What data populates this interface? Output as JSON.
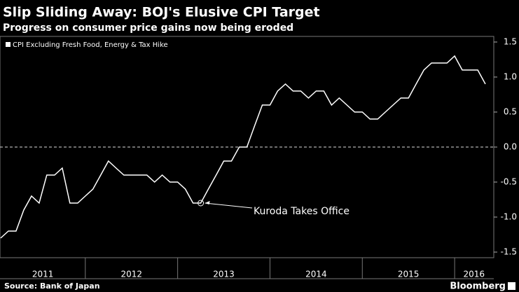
{
  "chart_data": {
    "type": "line",
    "title": "Slip Sliding Away: BOJ's Elusive CPI Target",
    "subtitle": "Progress on consumer price gains now being eroded",
    "source": "Source: Bank of Japan",
    "brand": "Bloomberg",
    "x": [
      2011.083,
      2011.167,
      2011.25,
      2011.333,
      2011.417,
      2011.5,
      2011.583,
      2011.667,
      2011.75,
      2011.833,
      2011.917,
      2012.0,
      2012.083,
      2012.167,
      2012.25,
      2012.333,
      2012.417,
      2012.5,
      2012.583,
      2012.667,
      2012.75,
      2012.833,
      2012.917,
      2013.0,
      2013.083,
      2013.167,
      2013.25,
      2013.333,
      2013.417,
      2013.5,
      2013.583,
      2013.667,
      2013.75,
      2013.833,
      2013.917,
      2014.0,
      2014.083,
      2014.167,
      2014.25,
      2014.333,
      2014.417,
      2014.5,
      2014.583,
      2014.667,
      2014.75,
      2014.833,
      2014.917,
      2015.0,
      2015.083,
      2015.167,
      2015.25,
      2015.333,
      2015.417,
      2015.5,
      2015.583,
      2015.667,
      2015.75,
      2015.833,
      2015.917,
      2016.0,
      2016.083,
      2016.167,
      2016.25,
      2016.333
    ],
    "series": [
      {
        "name": "CPI Excluding Fresh Food, Energy & Tax Hike",
        "color": "#ffffff",
        "values": [
          -1.3,
          -1.2,
          -1.2,
          -0.9,
          -0.7,
          -0.8,
          -0.4,
          -0.4,
          -0.3,
          -0.8,
          -0.8,
          -0.7,
          -0.6,
          -0.4,
          -0.2,
          -0.3,
          -0.4,
          -0.4,
          -0.4,
          -0.4,
          -0.5,
          -0.4,
          -0.5,
          -0.5,
          -0.6,
          -0.8,
          -0.8,
          -0.6,
          -0.4,
          -0.2,
          -0.2,
          0.0,
          0.0,
          0.3,
          0.6,
          0.6,
          0.8,
          0.9,
          0.8,
          0.8,
          0.7,
          0.8,
          0.8,
          0.6,
          0.7,
          0.6,
          0.5,
          0.5,
          0.4,
          0.4,
          0.5,
          0.6,
          0.7,
          0.7,
          0.9,
          1.1,
          1.2,
          1.2,
          1.2,
          1.3,
          1.1,
          1.1,
          1.1,
          0.9
        ]
      }
    ],
    "annotation": {
      "text": "Kuroda Takes Office",
      "x": 2013.25,
      "y": -0.8
    },
    "xlim": [
      2011.076,
      2016.424
    ],
    "xticks": [
      {
        "value": 2011.54,
        "label": "2011"
      },
      {
        "value": 2012.5,
        "label": "2012"
      },
      {
        "value": 2013.5,
        "label": "2013"
      },
      {
        "value": 2014.5,
        "label": "2014"
      },
      {
        "value": 2015.5,
        "label": "2015"
      },
      {
        "value": 2016.21,
        "label": "2016"
      }
    ],
    "ylim": [
      -1.58,
      1.58
    ],
    "yticks": [
      1.5,
      {
        "value": 1.0,
        "label": "1.0"
      },
      0.5,
      {
        "value": 0.0,
        "label": "0.0"
      },
      -0.5,
      {
        "value": -1.0,
        "label": "-1.0"
      },
      -1.5
    ],
    "zero_line": true,
    "legend": "top-left"
  }
}
